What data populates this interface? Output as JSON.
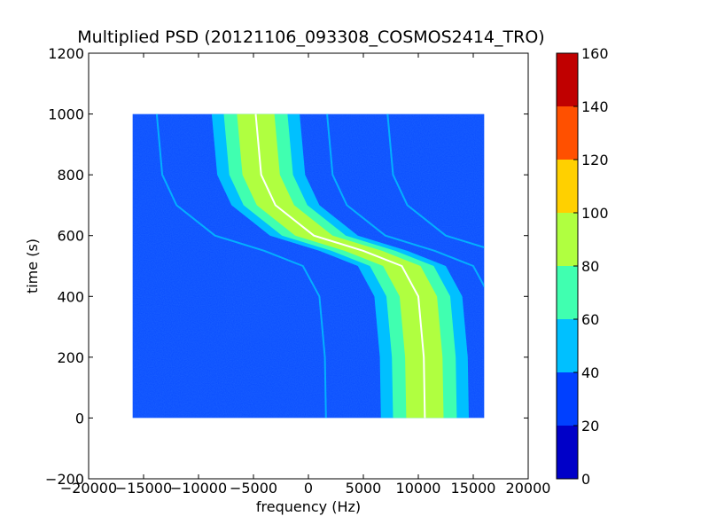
{
  "chart_data": {
    "type": "heatmap",
    "title": "Multiplied PSD (20121106_093308_COSMOS2414_TRO)",
    "xlabel": "frequency (Hz)",
    "ylabel": "time (s)",
    "xlim": [
      -20000,
      20000
    ],
    "ylim": [
      -200,
      1200
    ],
    "x_ticks": [
      -20000,
      -15000,
      -10000,
      -5000,
      0,
      5000,
      10000,
      15000,
      20000
    ],
    "x_tick_labels": [
      "−20000",
      "−15000",
      "−10000",
      "−5000",
      "0",
      "5000",
      "10000",
      "15000",
      "20000"
    ],
    "y_ticks": [
      -200,
      0,
      200,
      400,
      600,
      800,
      1000,
      1200
    ],
    "y_tick_labels": [
      "−200",
      "0",
      "200",
      "400",
      "600",
      "800",
      "1000",
      "1200"
    ],
    "data_extent": {
      "x": [
        -16000,
        16000
      ],
      "y": [
        0,
        1000
      ]
    },
    "colorbar": {
      "levels": [
        0,
        20,
        40,
        60,
        80,
        100,
        120,
        140,
        160
      ],
      "tick_labels": [
        "0",
        "20",
        "40",
        "60",
        "80",
        "100",
        "120",
        "140",
        "160"
      ],
      "colors": [
        "#0000c8",
        "#0040ff",
        "#00c0ff",
        "#40ffb0",
        "#b0ff40",
        "#ffd000",
        "#ff5000",
        "#c00000"
      ]
    },
    "background_level_color": "#0a4cff",
    "main_trace": {
      "description_x_at_y": [
        {
          "y": 1000,
          "x": -4800
        },
        {
          "y": 800,
          "x": -4300
        },
        {
          "y": 700,
          "x": -3000
        },
        {
          "y": 600,
          "x": 500
        },
        {
          "y": 550,
          "x": 5000
        },
        {
          "y": 500,
          "x": 8500
        },
        {
          "y": 400,
          "x": 10000
        },
        {
          "y": 200,
          "x": 10500
        },
        {
          "y": 0,
          "x": 10600
        }
      ]
    },
    "grid": false,
    "legend": "colorbar-right"
  }
}
